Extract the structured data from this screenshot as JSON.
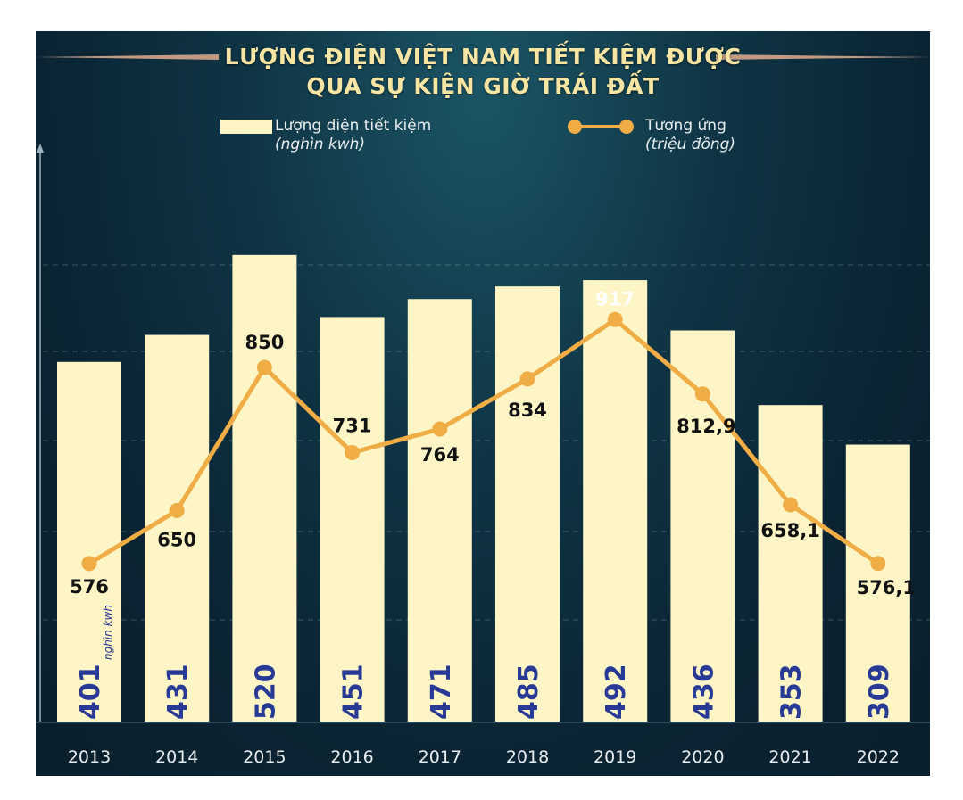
{
  "title": {
    "line1": "LƯỢNG ĐIỆN VIỆT NAM TIẾT KIỆM ĐƯỢC",
    "line2": "QUA SỰ KIỆN GIỜ TRÁI ĐẤT"
  },
  "legend": {
    "bars": {
      "label": "Lượng điện tiết kiệm",
      "unit": "(nghìn kwh)"
    },
    "line": {
      "label": "Tương ứng",
      "unit": "(triệu đồng)"
    }
  },
  "bar_unit_note": "nghìn kwh",
  "colors": {
    "bar": "#fdf5c5",
    "line": "#f0ad45",
    "bar_value": "#283a96",
    "background": "#0f3444"
  },
  "chart_data": {
    "type": "bar",
    "categories": [
      "2013",
      "2014",
      "2015",
      "2016",
      "2017",
      "2018",
      "2019",
      "2020",
      "2021",
      "2022"
    ],
    "series": [
      {
        "name": "Lượng điện tiết kiệm",
        "type": "bar",
        "values": [
          401,
          431,
          520,
          451,
          471,
          485,
          492,
          436,
          353,
          309
        ],
        "labels": [
          "401",
          "431",
          "520",
          "451",
          "471",
          "485",
          "492",
          "436",
          "353",
          "309"
        ]
      },
      {
        "name": "Tương ứng",
        "type": "line",
        "values": [
          576,
          650,
          850,
          731,
          764,
          834,
          917,
          812.9,
          658.1,
          576.1
        ],
        "labels": [
          "576",
          "650",
          "850",
          "731",
          "764",
          "834",
          "917",
          "812,9",
          "658,1",
          "576,1"
        ]
      }
    ],
    "legend_position": "top",
    "grid": "horizontal dashed"
  }
}
